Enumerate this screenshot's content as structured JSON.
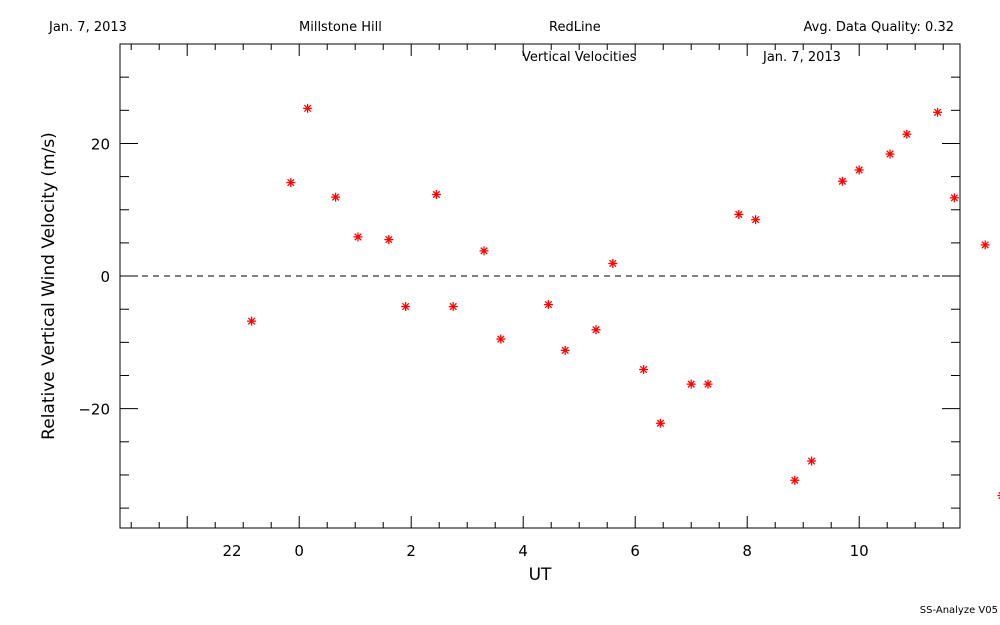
{
  "header": {
    "date": "Jan. 7, 2013",
    "site": "Millstone Hill",
    "line": "RedLine",
    "quality": "Avg. Data Quality: 0.32"
  },
  "footer": "SS-Analyze V05",
  "chart_data": {
    "type": "scatter",
    "title": "Vertical Velocities",
    "title_date": "Jan. 7, 2013",
    "xlabel": "UT",
    "ylabel": "Relative Vertical Wind Velocity (m/s)",
    "xlim": [
      -1.2,
      13.8
    ],
    "ylim": [
      -38,
      35
    ],
    "x_ticks": [
      {
        "v": 0.8,
        "label": "22"
      },
      {
        "v": 2,
        "label": "0"
      },
      {
        "v": 4,
        "label": "2"
      },
      {
        "v": 6,
        "label": "4"
      },
      {
        "v": 8,
        "label": "6"
      },
      {
        "v": 10,
        "label": "8"
      },
      {
        "v": 12,
        "label": "10"
      }
    ],
    "y_ticks": [
      -20,
      0,
      20
    ],
    "zero_line": 0,
    "marker_color": "#ff0000",
    "series": [
      {
        "points": [
          {
            "x": 1.15,
            "y": -6.8
          },
          {
            "x": 1.85,
            "y": 14.1
          },
          {
            "x": 2.15,
            "y": 25.3
          },
          {
            "x": 2.65,
            "y": 11.9
          },
          {
            "x": 3.05,
            "y": 5.9
          },
          {
            "x": 3.6,
            "y": 5.5
          },
          {
            "x": 3.9,
            "y": -4.6
          },
          {
            "x": 4.45,
            "y": 12.3
          },
          {
            "x": 4.75,
            "y": -4.6
          },
          {
            "x": 5.3,
            "y": 3.8
          },
          {
            "x": 5.6,
            "y": -9.5
          },
          {
            "x": 6.45,
            "y": -4.3
          },
          {
            "x": 6.75,
            "y": -11.2
          },
          {
            "x": 7.3,
            "y": -8.1
          },
          {
            "x": 7.6,
            "y": 1.9
          },
          {
            "x": 8.15,
            "y": -14.1
          },
          {
            "x": 8.45,
            "y": -22.2
          },
          {
            "x": 9.0,
            "y": -16.3
          },
          {
            "x": 9.3,
            "y": -16.3
          },
          {
            "x": 9.85,
            "y": 9.3
          },
          {
            "x": 10.15,
            "y": 8.5
          },
          {
            "x": 10.85,
            "y": -30.8
          },
          {
            "x": 11.15,
            "y": -27.9
          },
          {
            "x": 11.7,
            "y": 14.3
          },
          {
            "x": 12.0,
            "y": 16.0
          },
          {
            "x": 12.55,
            "y": 18.4
          },
          {
            "x": 12.85,
            "y": 21.4
          },
          {
            "x": 13.4,
            "y": 24.7
          },
          {
            "x": 13.7,
            "y": 11.8
          },
          {
            "x": 14.25,
            "y": 4.7
          },
          {
            "x": 14.55,
            "y": -33.1
          }
        ]
      }
    ]
  }
}
